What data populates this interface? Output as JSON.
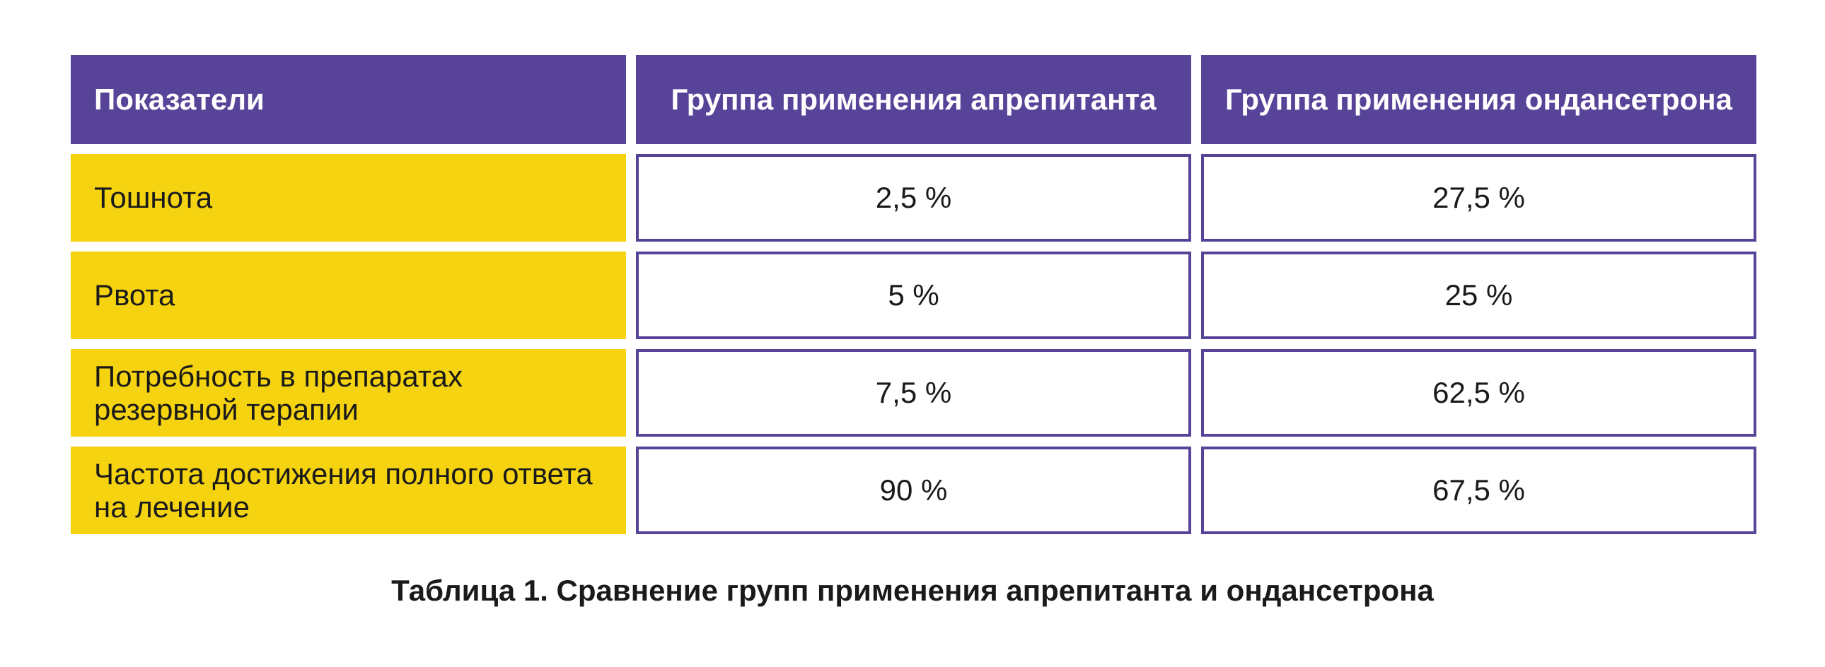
{
  "table": {
    "headers": [
      "Показатели",
      "Группа применения апрепитанта",
      "Группа применения ондансетрона"
    ],
    "rows": [
      {
        "label": "Тошнота",
        "aprepitant": "2,5 %",
        "ondansetron": "27,5 %"
      },
      {
        "label": "Рвота",
        "aprepitant": "5 %",
        "ondansetron": "25 %"
      },
      {
        "label": "Потребность в препаратах резервной терапии",
        "aprepitant": "7,5 %",
        "ondansetron": "62,5 %"
      },
      {
        "label": "Частота достижения полного ответа на лечение",
        "aprepitant": "90 %",
        "ondansetron": "67,5 %"
      }
    ]
  },
  "caption": "Таблица 1. Сравнение групп применения апрепитанта и ондансетрона",
  "colors": {
    "header_bg": "#574499",
    "label_bg": "#f5d310",
    "border": "#574499"
  }
}
